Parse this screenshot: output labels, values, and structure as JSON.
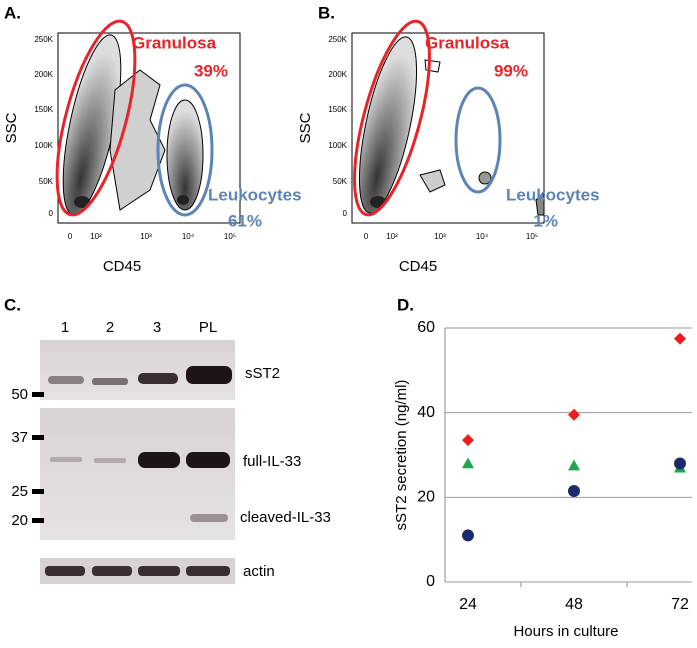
{
  "panel_a": {
    "label": "A.",
    "x_label": "CD45",
    "y_label": "SSC",
    "yticks": [
      "250K",
      "200K",
      "150K",
      "100K",
      "50K",
      "0"
    ],
    "xticks": [
      "0",
      "10²",
      "10³",
      "10⁴",
      "10⁵"
    ],
    "gates": [
      {
        "name": "Granulosa",
        "percent": "39%"
      },
      {
        "name": "Leukocytes",
        "percent": "61%"
      }
    ]
  },
  "panel_b": {
    "label": "B.",
    "x_label": "CD45",
    "y_label": "SSC",
    "yticks": [
      "250K",
      "200K",
      "150K",
      "100K",
      "50K",
      "0"
    ],
    "xticks": [
      "0",
      "10²",
      "10³",
      "10⁴",
      "10⁵"
    ],
    "gates": [
      {
        "name": "Granulosa",
        "percent": "99%"
      },
      {
        "name": "Leukocytes",
        "percent": "1%"
      }
    ]
  },
  "panel_c": {
    "label": "C.",
    "lanes": [
      "1",
      "2",
      "3",
      "PL"
    ],
    "markers": [
      "50",
      "37",
      "25",
      "20"
    ],
    "bands": [
      "sST2",
      "full-IL-33",
      "cleaved-IL-33",
      "actin"
    ]
  },
  "chart_data": {
    "type": "scatter",
    "label": "D.",
    "y_label": "sST2 secretion (ng/ml)",
    "x_label": "Hours in culture",
    "categories": [
      "24",
      "48",
      "72"
    ],
    "ylim": [
      0,
      60
    ],
    "yticks": [
      0,
      20,
      40,
      60
    ],
    "grid": true,
    "series": [
      {
        "color": "#ee1c1c",
        "marker": "diamond",
        "values": [
          33.5,
          39.5,
          57.5
        ]
      },
      {
        "color": "#1aa64a",
        "marker": "triangle",
        "values": [
          28,
          27.5,
          27
        ]
      },
      {
        "color": "#1b2a6b",
        "marker": "circle",
        "values": [
          11,
          21.5,
          28
        ]
      }
    ]
  }
}
